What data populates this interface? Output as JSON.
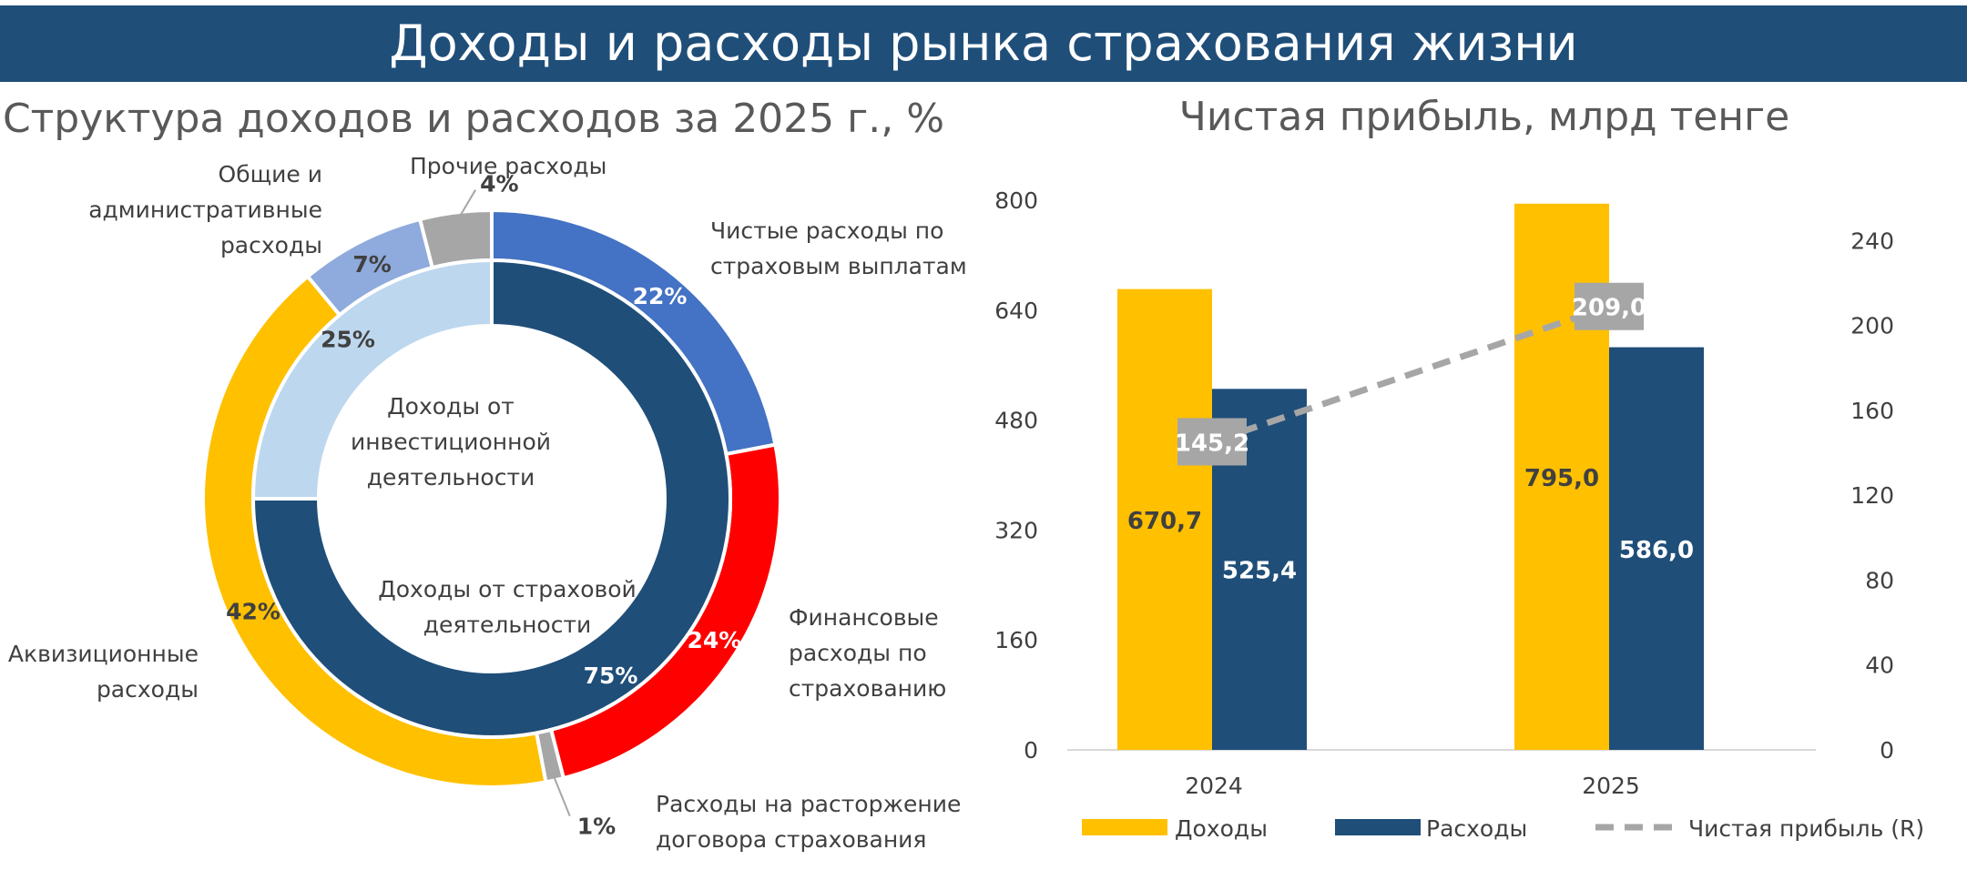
{
  "page_title": "Доходы и расходы рынка страхования жизни",
  "colors": {
    "banner": "#1f4e79",
    "yellow": "#ffc000",
    "navy": "#1f4e79",
    "blue": "#4472c4",
    "red": "#ff0000",
    "gray": "#a6a6a6",
    "lightblue": "#8faadc",
    "paleblue": "#bdd7ee"
  },
  "chart_data": [
    {
      "type": "donut",
      "title": "Структура доходов и расходов за 2025 г., %",
      "outer_ring": {
        "slices": [
          {
            "label": "Чистые расходы по страховым выплатам",
            "label_lines": [
              "Чистые расходы по",
              "страховым выплатам"
            ],
            "value": 22,
            "value_label": "22%",
            "color": "#4472c4"
          },
          {
            "label": "Финансовые расходы по страхованию",
            "label_lines": [
              "Финансовые",
              "расходы по",
              "страхованию"
            ],
            "value": 24,
            "value_label": "24%",
            "color": "#ff0000"
          },
          {
            "label": "Расходы на расторжение договора страхования",
            "label_lines": [
              "Расходы на расторжение",
              "договора страхования"
            ],
            "value": 1,
            "value_label": "1%",
            "color": "#a6a6a6"
          },
          {
            "label": "Аквизиционные расходы",
            "label_lines": [
              "Аквизиционные",
              "расходы"
            ],
            "value": 42,
            "value_label": "42%",
            "color": "#ffc000"
          },
          {
            "label": "Общие и административные расходы",
            "label_lines": [
              "Общие и",
              "административные",
              "расходы"
            ],
            "value": 7,
            "value_label": "7%",
            "color": "#8faadc"
          },
          {
            "label": "Прочие расходы",
            "label_lines": [
              "Прочие расходы"
            ],
            "value": 4,
            "value_label": "4%",
            "color": "#a6a6a6"
          }
        ]
      },
      "inner_ring": {
        "slices": [
          {
            "label": "Доходы от страховой деятельности",
            "label_lines": [
              "Доходы от страховой",
              "деятельности"
            ],
            "value": 75,
            "value_label": "75%",
            "color": "#1f4e79"
          },
          {
            "label": "Доходы от инвестиционной деятельности",
            "label_lines": [
              "Доходы от",
              "инвестиционной",
              "деятельности"
            ],
            "value": 25,
            "value_label": "25%",
            "color": "#bdd7ee"
          }
        ]
      }
    },
    {
      "type": "bar",
      "title": "Чистая прибыль, млрд тенге",
      "categories": [
        "2024",
        "2025"
      ],
      "series": [
        {
          "name": "Доходы",
          "kind": "bar",
          "axis": "left",
          "values": [
            670.7,
            795.0
          ],
          "value_labels": [
            "670,7",
            "795,0"
          ],
          "color": "#ffc000"
        },
        {
          "name": "Расходы",
          "kind": "bar",
          "axis": "left",
          "values": [
            525.4,
            586.0
          ],
          "value_labels": [
            "525,4",
            "586,0"
          ],
          "color": "#1f4e79"
        },
        {
          "name": "Чистая прибыль (R)",
          "kind": "line-dashed",
          "axis": "right",
          "values": [
            145.2,
            209.0
          ],
          "value_labels": [
            "145,2",
            "209,0"
          ],
          "color": "#a6a6a6"
        }
      ],
      "y_left": {
        "min": 0,
        "max": 800,
        "ticks": [
          "0",
          "160",
          "320",
          "480",
          "640",
          "800"
        ]
      },
      "y_right": {
        "min": 0,
        "max": 255,
        "ticks": [
          "0",
          "40",
          "80",
          "120",
          "160",
          "200",
          "240"
        ]
      },
      "grid": false,
      "legend_position": "bottom"
    }
  ]
}
